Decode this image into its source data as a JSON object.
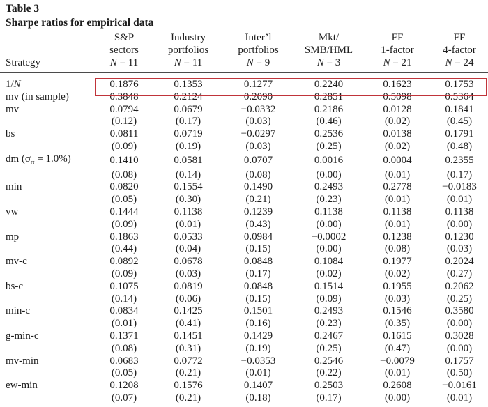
{
  "title": {
    "line1": "Table 3",
    "line2": "Sharpe ratios for empirical data"
  },
  "colors": {
    "highlight_border": "#c0343a",
    "rule": "#4b4b4b",
    "text": "#1e1e1e",
    "background": "#ffffff"
  },
  "header": {
    "strategy_label": "Strategy",
    "n_symbol": "N",
    "columns": [
      {
        "line1": "S&P",
        "line2": "sectors",
        "n_eq": " = 11"
      },
      {
        "line1": "Industry",
        "line2": "portfolios",
        "n_eq": " = 11"
      },
      {
        "line1": "Inter’l",
        "line2": "portfolios",
        "n_eq": " = 9"
      },
      {
        "line1": "Mkt/",
        "line2": "SMB/HML",
        "n_eq": " = 3"
      },
      {
        "line1": "FF",
        "line2": "1-factor",
        "n_eq": " = 21"
      },
      {
        "line1": "FF",
        "line2": "4-factor",
        "n_eq": " = 24"
      }
    ]
  },
  "rows": [
    {
      "label_pre": "1/",
      "label_it": "N",
      "highlighted": true,
      "values": [
        "0.1876",
        "0.1353",
        "0.1277",
        "0.2240",
        "0.1623",
        "0.1753"
      ]
    },
    {
      "label_pre": "mv (in sample)",
      "values": [
        "0.3848",
        "0.2124",
        "0.2090",
        "0.2851",
        "0.5098",
        "0.5364"
      ]
    },
    {
      "label_pre": "mv",
      "values": [
        "0.0794",
        "0.0679",
        "−0.0332",
        "0.2186",
        "0.0128",
        "0.1841"
      ],
      "pvalues": [
        "(0.12)",
        "(0.17)",
        "(0.03)",
        "(0.46)",
        "(0.02)",
        "(0.45)"
      ]
    },
    {
      "label_pre": "bs",
      "values": [
        "0.0811",
        "0.0719",
        "−0.0297",
        "0.2536",
        "0.0138",
        "0.1791"
      ],
      "pvalues": [
        "(0.09)",
        "(0.19)",
        "(0.03)",
        "(0.25)",
        "(0.02)",
        "(0.48)"
      ]
    },
    {
      "label_pre": "dm (σ",
      "label_sub": "α",
      "label_post": " = 1.0%)",
      "values": [
        "0.1410",
        "0.0581",
        "0.0707",
        "0.0016",
        "0.0004",
        "0.2355"
      ],
      "pvalues": [
        "(0.08)",
        "(0.14)",
        "(0.08)",
        "(0.00)",
        "(0.01)",
        "(0.17)"
      ]
    },
    {
      "label_pre": "min",
      "values": [
        "0.0820",
        "0.1554",
        "0.1490",
        "0.2493",
        "0.2778",
        "−0.0183"
      ],
      "pvalues": [
        "(0.05)",
        "(0.30)",
        "(0.21)",
        "(0.23)",
        "(0.01)",
        "(0.01)"
      ]
    },
    {
      "label_pre": "vw",
      "values": [
        "0.1444",
        "0.1138",
        "0.1239",
        "0.1138",
        "0.1138",
        "0.1138"
      ],
      "pvalues": [
        "(0.09)",
        "(0.01)",
        "(0.43)",
        "(0.00)",
        "(0.01)",
        "(0.00)"
      ]
    },
    {
      "label_pre": "mp",
      "values": [
        "0.1863",
        "0.0533",
        "0.0984",
        "−0.0002",
        "0.1238",
        "0.1230"
      ],
      "pvalues": [
        "(0.44)",
        "(0.04)",
        "(0.15)",
        "(0.00)",
        "(0.08)",
        "(0.03)"
      ]
    },
    {
      "label_pre": "mv-c",
      "values": [
        "0.0892",
        "0.0678",
        "0.0848",
        "0.1084",
        "0.1977",
        "0.2024"
      ],
      "pvalues": [
        "(0.09)",
        "(0.03)",
        "(0.17)",
        "(0.02)",
        "(0.02)",
        "(0.27)"
      ]
    },
    {
      "label_pre": "bs-c",
      "values": [
        "0.1075",
        "0.0819",
        "0.0848",
        "0.1514",
        "0.1955",
        "0.2062"
      ],
      "pvalues": [
        "(0.14)",
        "(0.06)",
        "(0.15)",
        "(0.09)",
        "(0.03)",
        "(0.25)"
      ]
    },
    {
      "label_pre": "min-c",
      "values": [
        "0.0834",
        "0.1425",
        "0.1501",
        "0.2493",
        "0.1546",
        "0.3580"
      ],
      "pvalues": [
        "(0.01)",
        "(0.41)",
        "(0.16)",
        "(0.23)",
        "(0.35)",
        "(0.00)"
      ]
    },
    {
      "label_pre": "g-min-c",
      "values": [
        "0.1371",
        "0.1451",
        "0.1429",
        "0.2467",
        "0.1615",
        "0.3028"
      ],
      "pvalues": [
        "(0.08)",
        "(0.31)",
        "(0.19)",
        "(0.25)",
        "(0.47)",
        "(0.00)"
      ]
    },
    {
      "label_pre": "mv-min",
      "values": [
        "0.0683",
        "0.0772",
        "−0.0353",
        "0.2546",
        "−0.0079",
        "0.1757"
      ],
      "pvalues": [
        "(0.05)",
        "(0.21)",
        "(0.01)",
        "(0.22)",
        "(0.01)",
        "(0.50)"
      ]
    },
    {
      "label_pre": "ew-min",
      "values": [
        "0.1208",
        "0.1576",
        "0.1407",
        "0.2503",
        "0.2608",
        "−0.0161"
      ],
      "pvalues": [
        "(0.07)",
        "(0.21)",
        "(0.18)",
        "(0.17)",
        "(0.00)",
        "(0.01)"
      ]
    }
  ]
}
